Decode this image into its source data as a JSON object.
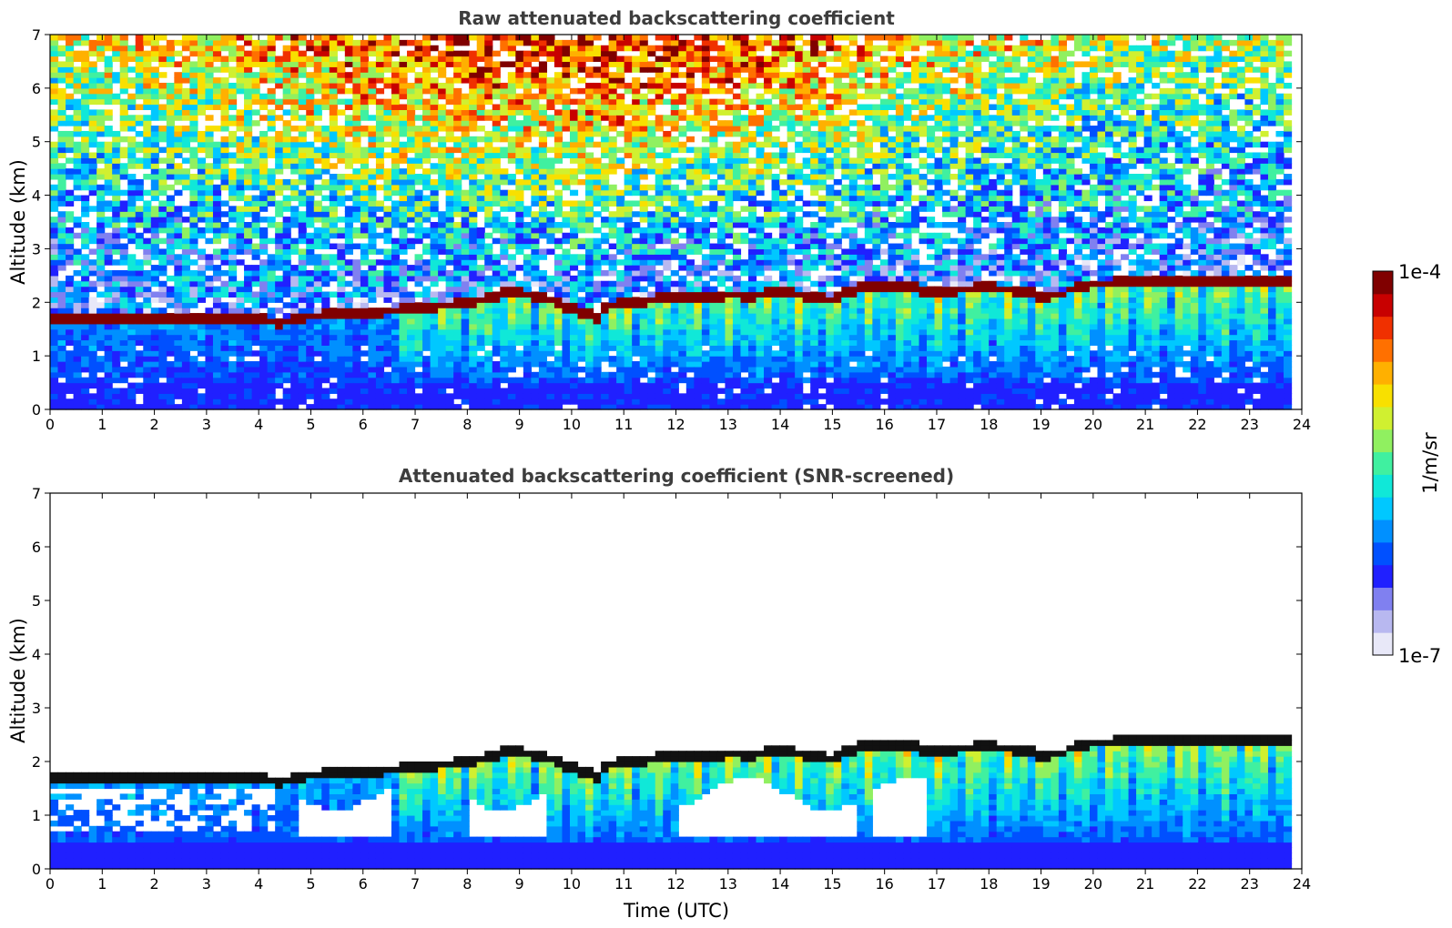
{
  "chart_data": [
    {
      "type": "heatmap",
      "title": "Raw attenuated backscattering coefficient",
      "xlabel": "",
      "ylabel": "Altitude (km)",
      "xlim": [
        0,
        24
      ],
      "ylim": [
        0,
        7
      ],
      "xticks": [
        "0",
        "1",
        "2",
        "3",
        "4",
        "5",
        "6",
        "7",
        "8",
        "9",
        "10",
        "11",
        "12",
        "13",
        "14",
        "15",
        "16",
        "17",
        "18",
        "19",
        "20",
        "21",
        "22",
        "23",
        "24"
      ],
      "yticks": [
        "0",
        "1",
        "2",
        "3",
        "4",
        "5",
        "6",
        "7"
      ],
      "data_end_hour": 23.8,
      "boundary_layer_top_km": {
        "x": [
          0,
          1,
          2,
          3,
          4,
          4.4,
          5,
          6,
          7,
          8,
          8.9,
          9.5,
          10,
          10.5,
          10.6,
          11,
          11.5,
          12,
          12.5,
          13,
          13.5,
          14,
          14.5,
          15,
          15.4,
          15.7,
          16,
          16.5,
          17,
          17.5,
          18,
          18.5,
          19,
          19.4,
          19.6,
          20,
          21,
          22,
          23,
          23.8
        ],
        "y": [
          1.7,
          1.67,
          1.63,
          1.67,
          1.65,
          1.6,
          1.72,
          1.78,
          1.85,
          1.97,
          2.18,
          2.05,
          1.85,
          1.68,
          1.9,
          1.95,
          2.02,
          2.08,
          2.05,
          2.12,
          2.1,
          2.18,
          2.1,
          2.02,
          2.2,
          2.28,
          2.3,
          2.25,
          2.15,
          2.22,
          2.25,
          2.2,
          2.1,
          2.12,
          2.25,
          2.32,
          2.35,
          2.35,
          2.38,
          2.4
        ]
      }
    },
    {
      "type": "heatmap",
      "title": "Attenuated backscattering coefficient (SNR-screened)",
      "xlabel": "Time (UTC)",
      "ylabel": "Altitude (km)",
      "xlim": [
        0,
        24
      ],
      "ylim": [
        0,
        7
      ],
      "xticks": [
        "0",
        "1",
        "2",
        "3",
        "4",
        "5",
        "6",
        "7",
        "8",
        "9",
        "10",
        "11",
        "12",
        "13",
        "14",
        "15",
        "16",
        "17",
        "18",
        "19",
        "20",
        "21",
        "22",
        "23",
        "24"
      ],
      "yticks": [
        "0",
        "1",
        "2",
        "3",
        "4",
        "5",
        "6",
        "7"
      ],
      "data_end_hour": 23.8
    }
  ],
  "colorbar": {
    "label": "1/m/sr",
    "max_label": "1e-4",
    "min_label": "1e-7",
    "colors": [
      "#e8e8f8",
      "#b8b8f0",
      "#8080f0",
      "#2020ff",
      "#0050ff",
      "#0090ff",
      "#00c8ff",
      "#10e8d8",
      "#40f0a0",
      "#90f060",
      "#d0f030",
      "#f8e000",
      "#ffb000",
      "#ff7000",
      "#f03000",
      "#c80000",
      "#800000"
    ]
  }
}
